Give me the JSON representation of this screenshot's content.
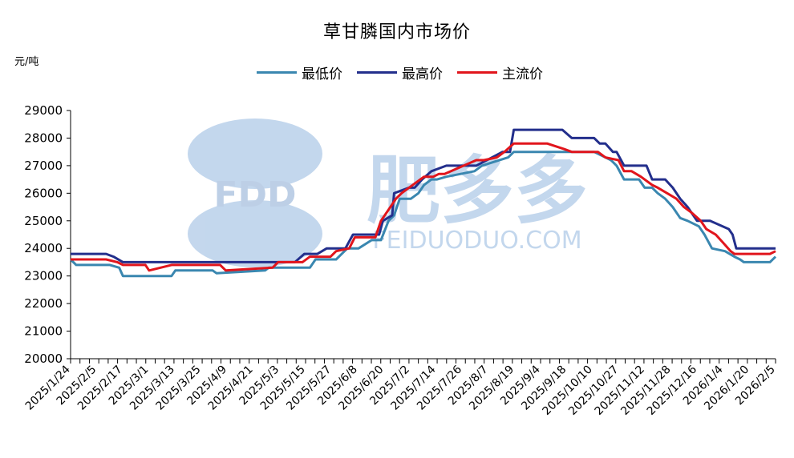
{
  "chart_data": {
    "type": "line",
    "title": "草甘膦国内市场价",
    "ylabel": "元/吨",
    "xlabel": "",
    "ylim": [
      20000,
      29000
    ],
    "yticks": [
      20000,
      21000,
      22000,
      23000,
      24000,
      25000,
      26000,
      27000,
      28000,
      29000
    ],
    "xlim": [
      "2025/1/24",
      "2026/2/5"
    ],
    "xtick_labels": [
      "2025/1/24",
      "2025/2/5",
      "2025/2/17",
      "2025/3/1",
      "2025/3/13",
      "2025/3/25",
      "2025/4/9",
      "2025/4/21",
      "2025/5/3",
      "2025/5/15",
      "2025/5/27",
      "2025/6/8",
      "2025/6/20",
      "2025/7/2",
      "2025/7/14",
      "2025/7/26",
      "2025/8/7",
      "2025/8/19",
      "2025/9/4",
      "2025/9/18",
      "2025/10/10",
      "2025/10/27",
      "2025/11/12",
      "2025/11/28",
      "2025/12/16",
      "2026/1/4",
      "2026/1/20",
      "2026/2/5"
    ],
    "legend_position": "top",
    "grid": false,
    "watermark": {
      "brand": "FDD",
      "chinese": "肥多多",
      "site": "FEIDUODUO.COM"
    },
    "series": [
      {
        "name": "最低价",
        "color": "#3a87b0",
        "x": [
          "2025/1/24",
          "2025/1/27",
          "2025/2/14",
          "2025/2/19",
          "2025/2/21",
          "2025/3/19",
          "2025/3/21",
          "2025/4/10",
          "2025/4/12",
          "2025/5/8",
          "2025/5/10",
          "2025/6/1",
          "2025/6/4",
          "2025/6/15",
          "2025/6/18",
          "2025/6/21",
          "2025/6/27",
          "2025/7/4",
          "2025/7/9",
          "2025/7/13",
          "2025/7/16",
          "2025/7/19",
          "2025/7/25",
          "2025/7/29",
          "2025/8/1",
          "2025/8/5",
          "2025/8/8",
          "2025/8/13",
          "2025/8/28",
          "2025/9/1",
          "2025/9/15",
          "2025/9/18",
          "2025/10/14",
          "2025/10/20",
          "2025/10/28",
          "2025/10/31",
          "2025/11/9",
          "2025/11/12",
          "2025/11/16",
          "2025/11/24",
          "2025/11/27",
          "2025/12/1",
          "2025/12/4",
          "2025/12/8",
          "2025/12/12",
          "2025/12/16",
          "2025/12/20",
          "2025/12/26",
          "2025/12/29",
          "2026/1/2",
          "2026/1/9",
          "2026/1/14",
          "2026/1/17",
          "2026/1/19",
          "2026/2/2",
          "2026/2/5"
        ],
        "values": [
          23600,
          23400,
          23400,
          23300,
          23000,
          23000,
          23200,
          23200,
          23100,
          23200,
          23300,
          23300,
          23600,
          23600,
          23800,
          24000,
          24000,
          24300,
          24300,
          25000,
          25200,
          25800,
          25800,
          26000,
          26300,
          26500,
          26500,
          26600,
          26800,
          27000,
          27300,
          27500,
          27500,
          27500,
          27500,
          27500,
          27200,
          27000,
          26500,
          26500,
          26200,
          26200,
          26000,
          25800,
          25500,
          25100,
          25000,
          24800,
          24500,
          24000,
          23900,
          23700,
          23600,
          23500,
          23500,
          23700
        ]
      },
      {
        "name": "最高价",
        "color": "#232f8c",
        "x": [
          "2025/1/24",
          "2025/2/12",
          "2025/2/16",
          "2025/2/21",
          "2025/3/19",
          "2025/5/24",
          "2025/5/29",
          "2025/6/5",
          "2025/6/10",
          "2025/6/20",
          "2025/6/24",
          "2025/7/8",
          "2025/7/10",
          "2025/7/15",
          "2025/7/16",
          "2025/7/24",
          "2025/7/27",
          "2025/7/31",
          "2025/8/5",
          "2025/8/13",
          "2025/8/22",
          "2025/8/29",
          "2025/9/12",
          "2025/9/16",
          "2025/9/18",
          "2025/10/14",
          "2025/10/19",
          "2025/10/23",
          "2025/10/31",
          "2025/11/3",
          "2025/11/6",
          "2025/11/10",
          "2025/11/12",
          "2025/11/16",
          "2025/11/28",
          "2025/12/1",
          "2025/12/4",
          "2025/12/8",
          "2025/12/12",
          "2025/12/16",
          "2025/12/20",
          "2025/12/25",
          "2026/1/1",
          "2026/1/11",
          "2026/1/13",
          "2026/1/15",
          "2026/2/5"
        ],
        "values": [
          23800,
          23800,
          23700,
          23500,
          23500,
          23500,
          23800,
          23800,
          24000,
          24000,
          24500,
          24500,
          25000,
          25200,
          26000,
          26200,
          26200,
          26500,
          26800,
          27000,
          27000,
          27000,
          27500,
          27500,
          28300,
          28300,
          28000,
          28000,
          28000,
          27800,
          27800,
          27500,
          27500,
          27000,
          27000,
          26500,
          26500,
          26500,
          26200,
          25800,
          25500,
          25000,
          25000,
          24700,
          24500,
          24000,
          24000
        ]
      },
      {
        "name": "主流价",
        "color": "#e1151c",
        "x": [
          "2025/1/24",
          "2025/2/12",
          "2025/2/18",
          "2025/2/21",
          "2025/3/5",
          "2025/3/7",
          "2025/3/19",
          "2025/4/14",
          "2025/4/17",
          "2025/5/12",
          "2025/5/15",
          "2025/5/28",
          "2025/6/1",
          "2025/6/12",
          "2025/6/15",
          "2025/6/22",
          "2025/6/25",
          "2025/7/6",
          "2025/7/9",
          "2025/7/14",
          "2025/7/17",
          "2025/7/20",
          "2025/7/24",
          "2025/7/28",
          "2025/8/1",
          "2025/8/6",
          "2025/8/9",
          "2025/8/12",
          "2025/8/29",
          "2025/9/2",
          "2025/9/9",
          "2025/9/13",
          "2025/9/18",
          "2025/10/2",
          "2025/10/6",
          "2025/10/15",
          "2025/10/19",
          "2025/11/2",
          "2025/11/6",
          "2025/11/13",
          "2025/11/16",
          "2025/11/20",
          "2025/11/25",
          "2025/12/1",
          "2025/12/4",
          "2025/12/9",
          "2025/12/14",
          "2025/12/18",
          "2025/12/22",
          "2025/12/27",
          "2025/12/30",
          "2026/1/4",
          "2026/1/8",
          "2026/1/12",
          "2026/1/14",
          "2026/2/2",
          "2026/2/5"
        ],
        "values": [
          23600,
          23600,
          23500,
          23400,
          23400,
          23200,
          23400,
          23400,
          23200,
          23300,
          23500,
          23500,
          23700,
          23700,
          23900,
          24000,
          24400,
          24400,
          25000,
          25500,
          25800,
          26000,
          26200,
          26400,
          26600,
          26600,
          26700,
          26700,
          27200,
          27200,
          27300,
          27500,
          27800,
          27800,
          27800,
          27600,
          27500,
          27500,
          27300,
          27200,
          26800,
          26800,
          26600,
          26300,
          26200,
          26000,
          25800,
          25500,
          25300,
          25000,
          24700,
          24500,
          24200,
          23900,
          23800,
          23800,
          23900
        ]
      }
    ]
  }
}
